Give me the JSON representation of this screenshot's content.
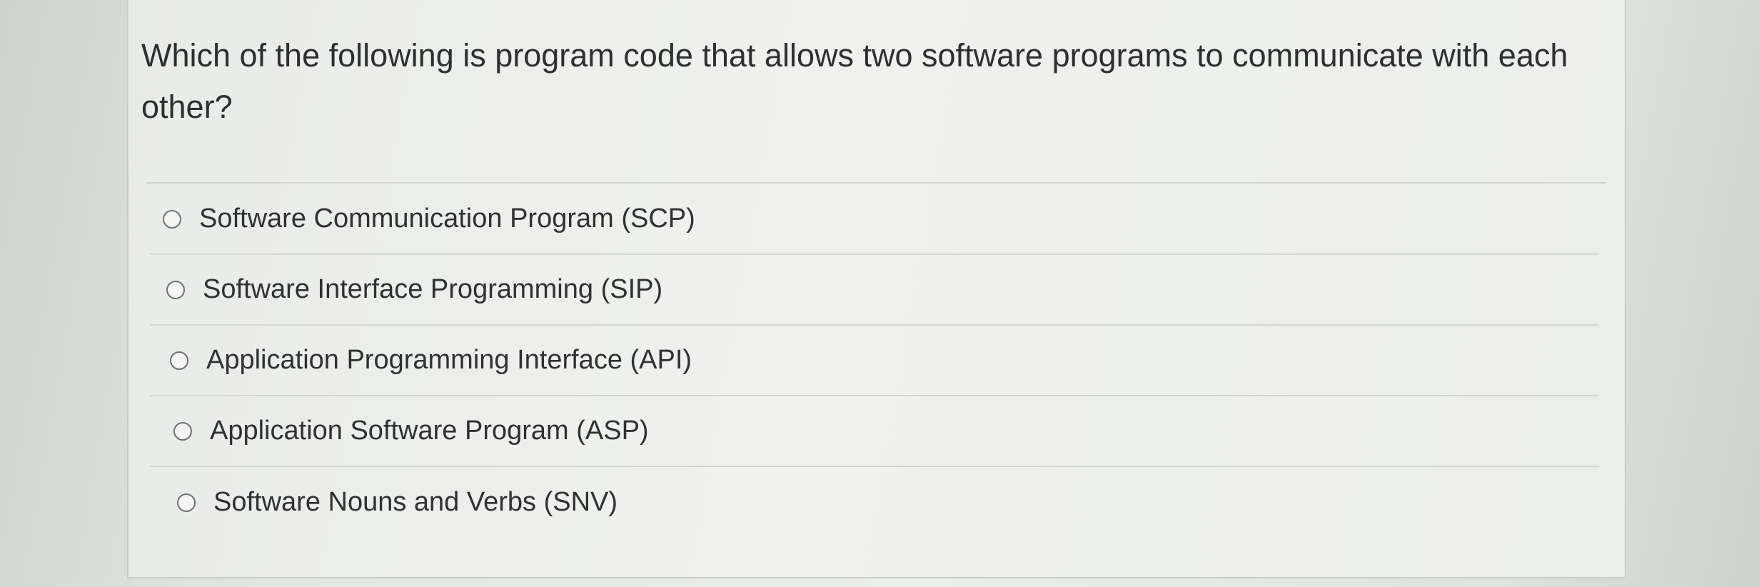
{
  "question": {
    "text": "Which of the following is program code that allows two software programs to communicate with each other?"
  },
  "options": [
    {
      "label": "Software Communication Program (SCP)",
      "selected": false
    },
    {
      "label": "Software Interface Programming (SIP)",
      "selected": false
    },
    {
      "label": "Application Programming Interface (API)",
      "selected": false
    },
    {
      "label": "Application Software Program (ASP)",
      "selected": false
    },
    {
      "label": "Software Nouns and Verbs (SNV)",
      "selected": false
    }
  ]
}
